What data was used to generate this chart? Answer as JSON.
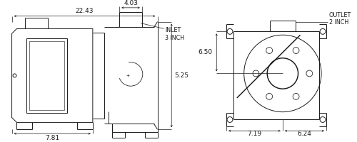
{
  "bg_color": "#ffffff",
  "line_color": "#1a1a1a",
  "lw": 0.7,
  "dlw": 0.5,
  "dims": {
    "total_length": "22.43",
    "inlet_width": "4.03",
    "inlet_label": "INLET\n3 INCH",
    "height_top": "6.50",
    "height_bot": "5.25",
    "motor_base": "7.81",
    "pump_w1": "7.19",
    "pump_w2": "6.24",
    "outlet_label": "OUTLET\n2 INCH"
  }
}
